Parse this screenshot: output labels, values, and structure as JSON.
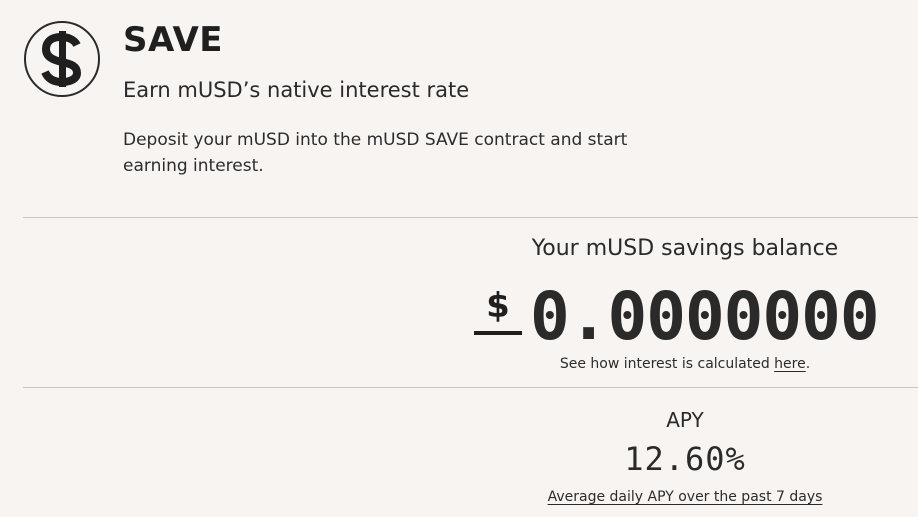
{
  "header": {
    "icon": "dollar-circle-icon",
    "title": "SAVE",
    "subtitle": "Earn mUSD’s native interest rate",
    "description": "Deposit your mUSD into the mUSD SAVE contract and start earning interest."
  },
  "balance": {
    "label": "Your mUSD savings balance",
    "currency_symbol": "$",
    "amount": "0.0000000",
    "note_prefix": "See how interest is calculated ",
    "note_link": "here",
    "note_suffix": "."
  },
  "apy": {
    "label": "APY",
    "value": "12.60%",
    "note": "Average daily APY over the past 7 days"
  },
  "colors": {
    "background": "#f7f4f2",
    "text": "#1f1f1f",
    "divider": "#c9c6c4"
  }
}
